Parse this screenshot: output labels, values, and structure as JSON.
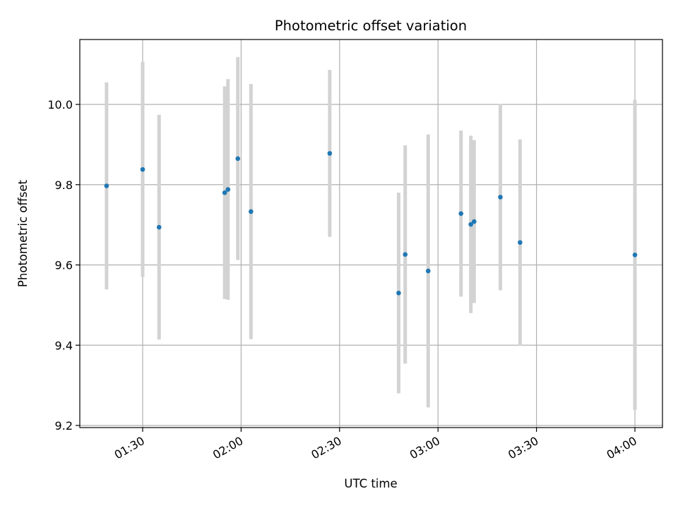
{
  "chart_data": {
    "type": "scatter",
    "title": "Photometric offset variation",
    "xlabel": "UTC time",
    "ylabel": "Photometric offset",
    "x_ticks": [
      "01:30",
      "02:00",
      "02:30",
      "03:00",
      "03:30",
      "04:00"
    ],
    "y_ticks": [
      "9.2",
      "9.4",
      "9.6",
      "9.8",
      "10.0"
    ],
    "grid": true,
    "colors": {
      "point": "#1f77b4",
      "errorbar": "#d3d3d3",
      "grid": "#b0b0b0"
    },
    "points": [
      {
        "x": "01:19",
        "y": 9.797,
        "err": 0.258
      },
      {
        "x": "01:30",
        "y": 9.838,
        "err": 0.268
      },
      {
        "x": "01:35",
        "y": 9.694,
        "err": 0.28
      },
      {
        "x": "01:55",
        "y": 9.78,
        "err": 0.265
      },
      {
        "x": "01:56",
        "y": 9.788,
        "err": 0.275
      },
      {
        "x": "01:59",
        "y": 9.865,
        "err": 0.253
      },
      {
        "x": "02:03",
        "y": 9.733,
        "err": 0.318
      },
      {
        "x": "02:27",
        "y": 9.878,
        "err": 0.208
      },
      {
        "x": "02:48",
        "y": 9.53,
        "err": 0.25
      },
      {
        "x": "02:50",
        "y": 9.626,
        "err": 0.272
      },
      {
        "x": "02:57",
        "y": 9.585,
        "err": 0.34
      },
      {
        "x": "03:07",
        "y": 9.728,
        "err": 0.207
      },
      {
        "x": "03:10",
        "y": 9.701,
        "err": 0.221
      },
      {
        "x": "03:11",
        "y": 9.708,
        "err": 0.203
      },
      {
        "x": "03:19",
        "y": 9.769,
        "err": 0.232
      },
      {
        "x": "03:25",
        "y": 9.656,
        "err": 0.257
      },
      {
        "x": "04:00",
        "y": 9.625,
        "err": 0.386
      }
    ]
  }
}
